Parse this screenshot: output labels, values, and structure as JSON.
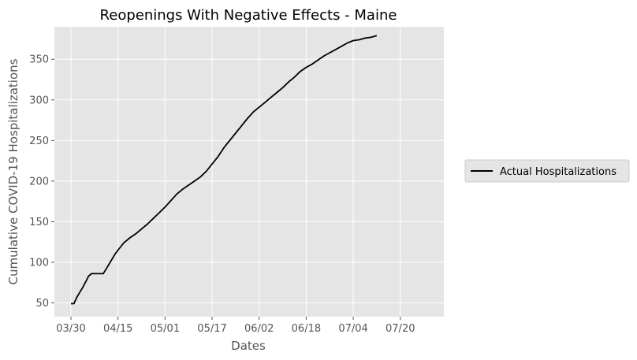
{
  "chart_data": {
    "type": "line",
    "title": "Reopenings With Negative Effects - Maine",
    "xlabel": "Dates",
    "ylabel": "Cumulative COVID-19 Hospitalizations",
    "x_ticks": [
      "03/30",
      "04/15",
      "05/01",
      "05/17",
      "06/02",
      "06/18",
      "07/04",
      "07/20"
    ],
    "y_ticks": [
      50,
      100,
      150,
      200,
      250,
      300,
      350
    ],
    "ylim": [
      33,
      390
    ],
    "grid": true,
    "legend_position": "right",
    "series": [
      {
        "name": "Actual Hospitalizations",
        "color": "#000000",
        "points": [
          [
            "03/30",
            49
          ],
          [
            "03/31",
            49
          ],
          [
            "04/01",
            57
          ],
          [
            "04/02",
            63
          ],
          [
            "04/03",
            69
          ],
          [
            "04/04",
            76
          ],
          [
            "04/05",
            83
          ],
          [
            "04/06",
            86
          ],
          [
            "04/07",
            86
          ],
          [
            "04/08",
            86
          ],
          [
            "04/09",
            86
          ],
          [
            "04/10",
            86
          ],
          [
            "04/11",
            92
          ],
          [
            "04/12",
            98
          ],
          [
            "04/13",
            104
          ],
          [
            "04/14",
            110
          ],
          [
            "04/15",
            115
          ],
          [
            "04/17",
            124
          ],
          [
            "04/19",
            130
          ],
          [
            "04/21",
            135
          ],
          [
            "04/23",
            141
          ],
          [
            "04/25",
            147
          ],
          [
            "04/27",
            154
          ],
          [
            "04/29",
            161
          ],
          [
            "05/01",
            168
          ],
          [
            "05/03",
            176
          ],
          [
            "05/05",
            184
          ],
          [
            "05/07",
            190
          ],
          [
            "05/09",
            195
          ],
          [
            "05/11",
            200
          ],
          [
            "05/13",
            205
          ],
          [
            "05/15",
            212
          ],
          [
            "05/17",
            221
          ],
          [
            "05/19",
            230
          ],
          [
            "05/21",
            241
          ],
          [
            "05/23",
            250
          ],
          [
            "05/25",
            259
          ],
          [
            "05/27",
            268
          ],
          [
            "05/29",
            277
          ],
          [
            "05/31",
            285
          ],
          [
            "06/02",
            291
          ],
          [
            "06/04",
            297
          ],
          [
            "06/06",
            303
          ],
          [
            "06/08",
            309
          ],
          [
            "06/10",
            315
          ],
          [
            "06/12",
            322
          ],
          [
            "06/14",
            328
          ],
          [
            "06/16",
            335
          ],
          [
            "06/18",
            340
          ],
          [
            "06/20",
            344
          ],
          [
            "06/22",
            349
          ],
          [
            "06/24",
            354
          ],
          [
            "06/26",
            358
          ],
          [
            "06/28",
            362
          ],
          [
            "06/30",
            366
          ],
          [
            "07/02",
            370
          ],
          [
            "07/04",
            373
          ],
          [
            "07/06",
            374
          ],
          [
            "07/08",
            376
          ],
          [
            "07/10",
            377
          ],
          [
            "07/12",
            379
          ]
        ]
      }
    ]
  }
}
